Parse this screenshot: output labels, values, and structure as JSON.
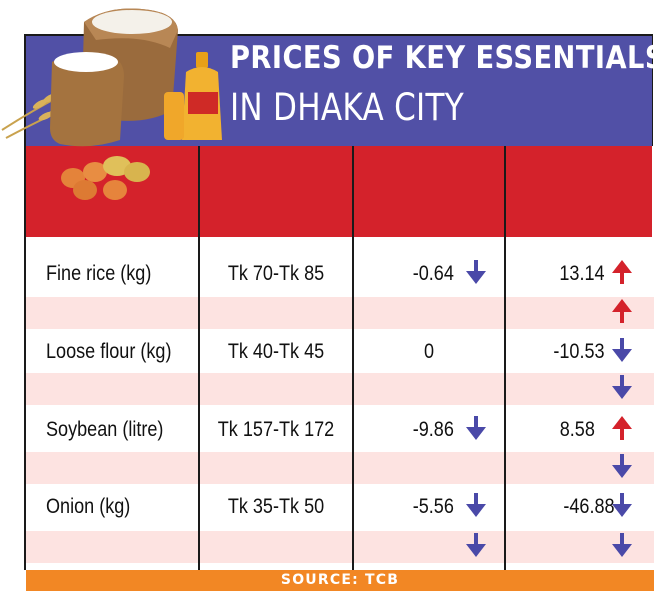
{
  "title": {
    "line1": "PRICES OF KEY ESSENTIALS",
    "line2": "IN DHAKA CITY"
  },
  "source": "SOURCE: TCB",
  "colors": {
    "title_band": "#5150a6",
    "header_band": "#d4222b",
    "stripe": "#fde3e1",
    "source_band": "#f28724",
    "arrow_up": "#d4222b",
    "arrow_down": "#4a49a8"
  },
  "illustrations": [
    "rice-sack-icon",
    "flour-sack-icon",
    "soybean-oil-bottle-icon",
    "wheat-icon",
    "egg-icon",
    "potato-icon"
  ],
  "chart_data": {
    "type": "table",
    "rows": [
      {
        "item": "Fine rice (kg)",
        "price": "Tk 70-Tk 85",
        "change1": "-0.64",
        "change1_dir": "down",
        "change2": "13.14",
        "change2_dir": "up",
        "sub_arrow1": "",
        "sub_arrow2": "up"
      },
      {
        "item": "Loose flour (kg)",
        "price": "Tk 40-Tk 45",
        "change1": "0",
        "change1_dir": "",
        "change2": "-10.53",
        "change2_dir": "down",
        "sub_arrow1": "",
        "sub_arrow2": "down"
      },
      {
        "item": "Soybean (litre)",
        "price": "Tk 157-Tk 172",
        "change1": "-9.86",
        "change1_dir": "down",
        "change2": "8.58",
        "change2_dir": "up",
        "sub_arrow1": "",
        "sub_arrow2": "down"
      },
      {
        "item": "Onion (kg)",
        "price": "Tk 35-Tk 50",
        "change1": "-5.56",
        "change1_dir": "down",
        "change2": "-46.88",
        "change2_dir": "down",
        "sub_arrow1": "down",
        "sub_arrow2": "down"
      }
    ]
  }
}
